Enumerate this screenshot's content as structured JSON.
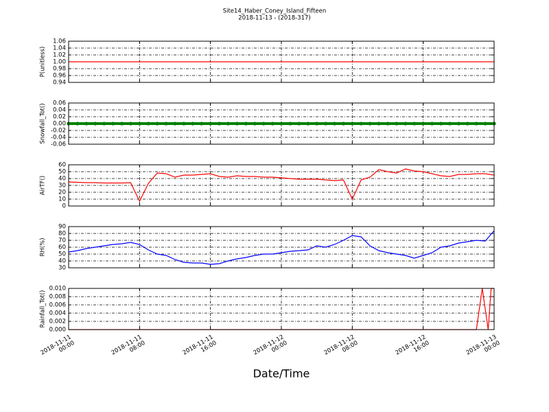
{
  "title": "Site14_Haber_Coney_Island_Fifteen",
  "subtitle": "2018-11-13 - (2018-317)",
  "chart_data": [
    {
      "type": "line",
      "ylabel": "P(unitless)",
      "color": "#ff0000",
      "grid": true,
      "xlim": [
        "2018-11-11 00:00",
        "2018-11-13 00:00"
      ],
      "ylim": [
        0.94,
        1.06
      ],
      "yticks": [
        0.94,
        0.96,
        0.98,
        {
          "value": 1,
          "label": "1.00"
        },
        1.02,
        1.04,
        1.06
      ],
      "x": [
        "2018-11-11 00:00",
        "2018-11-11 01:00",
        "2018-11-11 02:00",
        "2018-11-11 03:00",
        "2018-11-11 04:00",
        "2018-11-11 05:00",
        "2018-11-11 06:00",
        "2018-11-11 07:00",
        "2018-11-11 08:00",
        "2018-11-11 09:00",
        "2018-11-11 10:00",
        "2018-11-11 11:00",
        "2018-11-11 12:00",
        "2018-11-11 13:00",
        "2018-11-11 14:00",
        "2018-11-11 15:00",
        "2018-11-11 16:00",
        "2018-11-11 17:00",
        "2018-11-11 18:00",
        "2018-11-11 19:00",
        "2018-11-11 20:00",
        "2018-11-11 21:00",
        "2018-11-11 22:00",
        "2018-11-11 23:00",
        "2018-11-12 00:00",
        "2018-11-12 01:00",
        "2018-11-12 02:00",
        "2018-11-12 03:00",
        "2018-11-12 04:00",
        "2018-11-12 05:00",
        "2018-11-12 06:00",
        "2018-11-12 07:00",
        "2018-11-12 08:00",
        "2018-11-12 09:00",
        "2018-11-12 10:00",
        "2018-11-12 11:00",
        "2018-11-12 12:00",
        "2018-11-12 13:00",
        "2018-11-12 14:00",
        "2018-11-12 15:00",
        "2018-11-12 16:00",
        "2018-11-12 17:00",
        "2018-11-12 18:00",
        "2018-11-12 19:00",
        "2018-11-12 20:00",
        "2018-11-12 21:00",
        "2018-11-12 22:00",
        "2018-11-12 23:00",
        "2018-11-13 00:00"
      ],
      "values": [
        1,
        1,
        1,
        1,
        1,
        1,
        1,
        1,
        1,
        1,
        1,
        1,
        1,
        1,
        1,
        1,
        1,
        1,
        1,
        1,
        1,
        1,
        1,
        1,
        1,
        1,
        1,
        1,
        1,
        1,
        1,
        1,
        1,
        1,
        1,
        1,
        1,
        1,
        1,
        1,
        1,
        1,
        1,
        1,
        1,
        1,
        1,
        1,
        1
      ]
    },
    {
      "type": "marker-line",
      "ylabel": "Snowfall_Tot()",
      "color": "#008000",
      "grid": true,
      "xlim": [
        "2018-11-11 00:00",
        "2018-11-13 00:00"
      ],
      "ylim": [
        -0.06,
        0.06
      ],
      "yticks": [
        -0.06,
        -0.04,
        -0.02,
        {
          "value": 0,
          "label": "0.00"
        },
        0.02,
        0.04,
        0.06
      ],
      "x": [
        "2018-11-11 00:00",
        "2018-11-11 01:00",
        "2018-11-11 02:00",
        "2018-11-11 03:00",
        "2018-11-11 04:00",
        "2018-11-11 05:00",
        "2018-11-11 06:00",
        "2018-11-11 07:00",
        "2018-11-11 08:00",
        "2018-11-11 09:00",
        "2018-11-11 10:00",
        "2018-11-11 11:00",
        "2018-11-11 12:00",
        "2018-11-11 13:00",
        "2018-11-11 14:00",
        "2018-11-11 15:00",
        "2018-11-11 16:00",
        "2018-11-11 17:00",
        "2018-11-11 18:00",
        "2018-11-11 19:00",
        "2018-11-11 20:00",
        "2018-11-11 21:00",
        "2018-11-11 22:00",
        "2018-11-11 23:00",
        "2018-11-12 00:00",
        "2018-11-12 01:00",
        "2018-11-12 02:00",
        "2018-11-12 03:00",
        "2018-11-12 04:00",
        "2018-11-12 05:00",
        "2018-11-12 06:00",
        "2018-11-12 07:00",
        "2018-11-12 08:00",
        "2018-11-12 09:00",
        "2018-11-12 10:00",
        "2018-11-12 11:00",
        "2018-11-12 12:00",
        "2018-11-12 13:00",
        "2018-11-12 14:00",
        "2018-11-12 15:00",
        "2018-11-12 16:00",
        "2018-11-12 17:00",
        "2018-11-12 18:00",
        "2018-11-12 19:00",
        "2018-11-12 20:00",
        "2018-11-12 21:00",
        "2018-11-12 22:00",
        "2018-11-12 23:00",
        "2018-11-13 00:00"
      ],
      "values": [
        0,
        0,
        0,
        0,
        0,
        0,
        0,
        0,
        0,
        0,
        0,
        0,
        0,
        0,
        0,
        0,
        0,
        0,
        0,
        0,
        0,
        0,
        0,
        0,
        0,
        0,
        0,
        0,
        0,
        0,
        0,
        0,
        0,
        0,
        0,
        0,
        0,
        0,
        0,
        0,
        0,
        0,
        0,
        0,
        0,
        0,
        0,
        0,
        0
      ]
    },
    {
      "type": "line",
      "ylabel": "AirTF()",
      "color": "#ff0000",
      "grid": true,
      "xlim": [
        "2018-11-11 00:00",
        "2018-11-13 00:00"
      ],
      "ylim": [
        0,
        60
      ],
      "yticks": [
        0,
        10,
        20,
        30,
        40,
        50,
        60
      ],
      "x": [
        "2018-11-11 00:00",
        "2018-11-11 01:00",
        "2018-11-11 02:00",
        "2018-11-11 03:00",
        "2018-11-11 04:00",
        "2018-11-11 05:00",
        "2018-11-11 06:00",
        "2018-11-11 07:00",
        "2018-11-11 08:00",
        "2018-11-11 09:00",
        "2018-11-11 10:00",
        "2018-11-11 11:00",
        "2018-11-11 12:00",
        "2018-11-11 13:00",
        "2018-11-11 14:00",
        "2018-11-11 15:00",
        "2018-11-11 16:00",
        "2018-11-11 17:00",
        "2018-11-11 18:00",
        "2018-11-11 19:00",
        "2018-11-11 20:00",
        "2018-11-11 21:00",
        "2018-11-11 22:00",
        "2018-11-11 23:00",
        "2018-11-12 00:00",
        "2018-11-12 01:00",
        "2018-11-12 02:00",
        "2018-11-12 03:00",
        "2018-11-12 04:00",
        "2018-11-12 05:00",
        "2018-11-12 06:00",
        "2018-11-12 07:00",
        "2018-11-12 08:00",
        "2018-11-12 09:00",
        "2018-11-12 10:00",
        "2018-11-12 11:00",
        "2018-11-12 12:00",
        "2018-11-12 13:00",
        "2018-11-12 14:00",
        "2018-11-12 15:00",
        "2018-11-12 16:00",
        "2018-11-12 17:00",
        "2018-11-12 18:00",
        "2018-11-12 19:00",
        "2018-11-12 20:00",
        "2018-11-12 21:00",
        "2018-11-12 22:00",
        "2018-11-12 23:00",
        "2018-11-13 00:00"
      ],
      "values": [
        35,
        34.5,
        34,
        34,
        33.5,
        33.5,
        33.5,
        34,
        7,
        33,
        48,
        47,
        42,
        45,
        45,
        46,
        47,
        43,
        42,
        44,
        43,
        43,
        42,
        42,
        41,
        40,
        39,
        39,
        39,
        38,
        37,
        38,
        10,
        38,
        42,
        53,
        50,
        48,
        54,
        51,
        50,
        47,
        44,
        43,
        46,
        46,
        47,
        47,
        45
      ]
    },
    {
      "type": "line",
      "ylabel": "RH(%)",
      "color": "#0000ff",
      "grid": true,
      "xlim": [
        "2018-11-11 00:00",
        "2018-11-13 00:00"
      ],
      "ylim": [
        30,
        90
      ],
      "yticks": [
        30,
        40,
        50,
        60,
        70,
        80,
        90
      ],
      "x": [
        "2018-11-11 00:00",
        "2018-11-11 01:00",
        "2018-11-11 02:00",
        "2018-11-11 03:00",
        "2018-11-11 04:00",
        "2018-11-11 05:00",
        "2018-11-11 06:00",
        "2018-11-11 07:00",
        "2018-11-11 08:00",
        "2018-11-11 09:00",
        "2018-11-11 10:00",
        "2018-11-11 11:00",
        "2018-11-11 12:00",
        "2018-11-11 13:00",
        "2018-11-11 14:00",
        "2018-11-11 15:00",
        "2018-11-11 16:00",
        "2018-11-11 17:00",
        "2018-11-11 18:00",
        "2018-11-11 19:00",
        "2018-11-11 20:00",
        "2018-11-11 21:00",
        "2018-11-11 22:00",
        "2018-11-11 23:00",
        "2018-11-12 00:00",
        "2018-11-12 01:00",
        "2018-11-12 02:00",
        "2018-11-12 03:00",
        "2018-11-12 04:00",
        "2018-11-12 05:00",
        "2018-11-12 06:00",
        "2018-11-12 07:00",
        "2018-11-12 08:00",
        "2018-11-12 09:00",
        "2018-11-12 10:00",
        "2018-11-12 11:00",
        "2018-11-12 12:00",
        "2018-11-12 13:00",
        "2018-11-12 14:00",
        "2018-11-12 15:00",
        "2018-11-12 16:00",
        "2018-11-12 17:00",
        "2018-11-12 18:00",
        "2018-11-12 19:00",
        "2018-11-12 20:00",
        "2018-11-12 21:00",
        "2018-11-12 22:00",
        "2018-11-12 23:00",
        "2018-11-13 00:00"
      ],
      "values": [
        53,
        55,
        58,
        60,
        62,
        64,
        65,
        67,
        64,
        56,
        50,
        48,
        42,
        38,
        37,
        37,
        35,
        36,
        40,
        43,
        45,
        48,
        50,
        50,
        52,
        54,
        55,
        56,
        62,
        60,
        64,
        70,
        77,
        75,
        62,
        55,
        52,
        50,
        48,
        44,
        48,
        52,
        60,
        62,
        66,
        68,
        70,
        69,
        84
      ]
    },
    {
      "type": "line",
      "ylabel": "Rainfall_Tot()",
      "color": "#ff0000",
      "grid": true,
      "xlabel": "Date/Time",
      "xlim": [
        "2018-11-11 00:00",
        "2018-11-13 00:00"
      ],
      "ylim": [
        0,
        0.01
      ],
      "yticks": [
        {
          "value": 0,
          "label": "0.000"
        },
        {
          "value": 0.002,
          "label": "0.002"
        },
        {
          "value": 0.004,
          "label": "0.004"
        },
        {
          "value": 0.006,
          "label": "0.006"
        },
        {
          "value": 0.008,
          "label": "0.008"
        },
        {
          "value": 0.01,
          "label": "0.010"
        }
      ],
      "xticks": [
        {
          "value": "2018-11-11 00:00",
          "label": "2018-11-11\n00:00"
        },
        {
          "value": "2018-11-11 08:00",
          "label": "2018-11-11\n08:00"
        },
        {
          "value": "2018-11-11 16:00",
          "label": "2018-11-11\n16:00"
        },
        {
          "value": "2018-11-12 00:00",
          "label": "2018-11-12\n00:00"
        },
        {
          "value": "2018-11-12 08:00",
          "label": "2018-11-12\n08:00"
        },
        {
          "value": "2018-11-12 16:00",
          "label": "2018-11-12\n16:00"
        },
        {
          "value": "2018-11-13 00:00",
          "label": "2018-11-13\n00:00"
        }
      ],
      "x": [
        "2018-11-11 00:00",
        "2018-11-11 01:00",
        "2018-11-11 02:00",
        "2018-11-11 03:00",
        "2018-11-11 04:00",
        "2018-11-11 05:00",
        "2018-11-11 06:00",
        "2018-11-11 07:00",
        "2018-11-11 08:00",
        "2018-11-11 09:00",
        "2018-11-11 10:00",
        "2018-11-11 11:00",
        "2018-11-11 12:00",
        "2018-11-11 13:00",
        "2018-11-11 14:00",
        "2018-11-11 15:00",
        "2018-11-11 16:00",
        "2018-11-11 17:00",
        "2018-11-11 18:00",
        "2018-11-11 19:00",
        "2018-11-11 20:00",
        "2018-11-11 21:00",
        "2018-11-11 22:00",
        "2018-11-11 23:00",
        "2018-11-12 00:00",
        "2018-11-12 01:00",
        "2018-11-12 02:00",
        "2018-11-12 03:00",
        "2018-11-12 04:00",
        "2018-11-12 05:00",
        "2018-11-12 06:00",
        "2018-11-12 07:00",
        "2018-11-12 08:00",
        "2018-11-12 09:00",
        "2018-11-12 10:00",
        "2018-11-12 11:00",
        "2018-11-12 12:00",
        "2018-11-12 13:00",
        "2018-11-12 14:00",
        "2018-11-12 15:00",
        "2018-11-12 16:00",
        "2018-11-12 17:00",
        "2018-11-12 18:00",
        "2018-11-12 19:00",
        "2018-11-12 20:00",
        "2018-11-12 21:00",
        "2018-11-12 22:00",
        "2018-11-12 22:40",
        "2018-11-12 23:20",
        "2018-11-12 23:40",
        "2018-11-13 00:00"
      ],
      "values": [
        0,
        0,
        0,
        0,
        0,
        0,
        0,
        0,
        0,
        0,
        0,
        0,
        0,
        0,
        0,
        0,
        0,
        0,
        0,
        0,
        0,
        0,
        0,
        0,
        0,
        0,
        0,
        0,
        0,
        0,
        0,
        0,
        0,
        0,
        0,
        0,
        0,
        0,
        0,
        0,
        0,
        0,
        0,
        0,
        0,
        0,
        0,
        0.01,
        0,
        0.01,
        0.01
      ]
    }
  ]
}
